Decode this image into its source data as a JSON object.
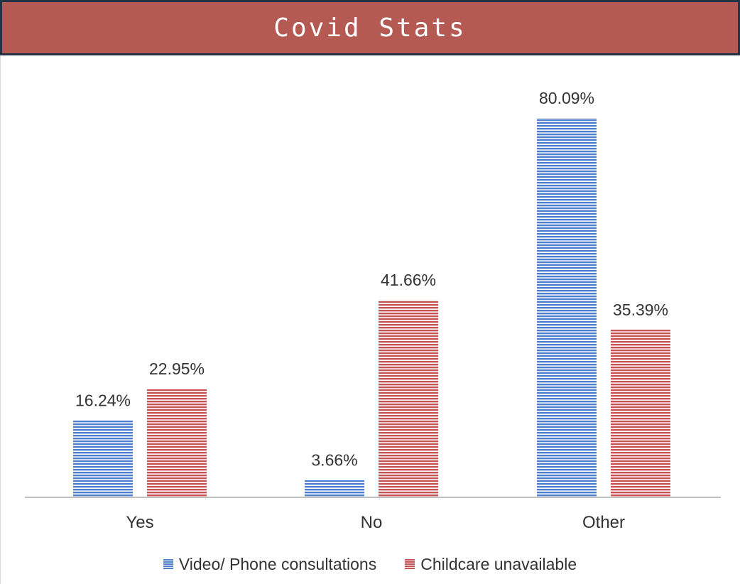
{
  "header": {
    "title": "Covid Stats"
  },
  "colors": {
    "header_bg": "#b55a53",
    "header_border": "#243247",
    "series_blue": "#4f7fd0",
    "series_red": "#c65454"
  },
  "chart_data": {
    "type": "bar",
    "title": "Covid Stats",
    "categories": [
      "Yes",
      "No",
      "Other"
    ],
    "series": [
      {
        "name": "Video/ Phone consultations",
        "values": [
          16.24,
          3.66,
          80.09
        ],
        "labels": [
          "16.24%",
          "3.66%",
          "80.09%"
        ],
        "color": "#4f7fd0",
        "pattern": "blue-stripes"
      },
      {
        "name": "Childcare unavailable",
        "values": [
          22.95,
          41.66,
          35.39
        ],
        "labels": [
          "22.95%",
          "41.66%",
          "35.39%"
        ],
        "color": "#c65454",
        "pattern": "red-stripes"
      }
    ],
    "ylim": [
      0,
      85
    ],
    "grid": false,
    "legend_position": "bottom"
  }
}
